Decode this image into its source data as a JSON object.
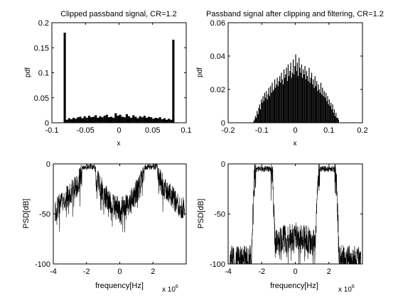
{
  "figure": {
    "background": "#ffffff",
    "axis_color": "#000000",
    "data_color": "#000000"
  },
  "chart_data": [
    {
      "id": "tl",
      "type": "bar",
      "title": "Clipped passband signal, CR=1.2",
      "xlabel": "x",
      "ylabel": "pdf",
      "xlim": [
        -0.1,
        0.1
      ],
      "ylim": [
        0,
        0.2
      ],
      "xticks": [
        -0.1,
        -0.05,
        0,
        0.05,
        0.1
      ],
      "xticklabels": [
        "-0.1",
        "-0.05",
        "0",
        "0.05",
        "0.1"
      ],
      "yticks": [
        0,
        0.05,
        0.1,
        0.15,
        0.2
      ],
      "yticklabels": [
        "0",
        "0.05",
        "0.1",
        "0.15",
        "0.2"
      ],
      "histogram": {
        "bin_start": -0.0825,
        "bin_width": 0.0033,
        "values": [
          0.18,
          0.006,
          0.009,
          0.007,
          0.01,
          0.008,
          0.011,
          0.012,
          0.009,
          0.013,
          0.01,
          0.014,
          0.011,
          0.012,
          0.015,
          0.01,
          0.013,
          0.011,
          0.014,
          0.016,
          0.011,
          0.012,
          0.01,
          0.019,
          0.014,
          0.016,
          0.012,
          0.011,
          0.017,
          0.013,
          0.01,
          0.015,
          0.012,
          0.009,
          0.013,
          0.011,
          0.014,
          0.01,
          0.012,
          0.011,
          0.008,
          0.01,
          0.009,
          0.011,
          0.007,
          0.009,
          0.006,
          0.008,
          0.006,
          0.166
        ]
      }
    },
    {
      "id": "tr",
      "type": "bar",
      "title": "Passband signal after clipping and filtering, CR=1.2",
      "xlabel": "x",
      "ylabel": "pdf",
      "xlim": [
        -0.2,
        0.2
      ],
      "ylim": [
        0,
        0.06
      ],
      "xticks": [
        -0.2,
        -0.1,
        0,
        0.1,
        0.2
      ],
      "xticklabels": [
        "-0.2",
        "-0.1",
        "0",
        "0.1",
        "0.2"
      ],
      "yticks": [
        0,
        0.02,
        0.04,
        0.06
      ],
      "yticklabels": [
        "0",
        "0.02",
        "0.04",
        "0.06"
      ],
      "histogram": {
        "bin_start": -0.125,
        "bin_width": 0.0025,
        "values": [
          0.001,
          0.002,
          0.004,
          0.003,
          0.007,
          0.005,
          0.009,
          0.011,
          0.008,
          0.014,
          0.012,
          0.016,
          0.013,
          0.018,
          0.015,
          0.019,
          0.014,
          0.017,
          0.021,
          0.016,
          0.022,
          0.018,
          0.024,
          0.019,
          0.02,
          0.026,
          0.021,
          0.023,
          0.027,
          0.022,
          0.025,
          0.028,
          0.024,
          0.03,
          0.026,
          0.023,
          0.032,
          0.027,
          0.029,
          0.033,
          0.025,
          0.035,
          0.028,
          0.031,
          0.036,
          0.027,
          0.03,
          0.038,
          0.029,
          0.034,
          0.041,
          0.031,
          0.036,
          0.028,
          0.039,
          0.033,
          0.03,
          0.035,
          0.027,
          0.032,
          0.029,
          0.034,
          0.026,
          0.031,
          0.028,
          0.025,
          0.033,
          0.024,
          0.027,
          0.03,
          0.023,
          0.026,
          0.021,
          0.028,
          0.022,
          0.025,
          0.019,
          0.023,
          0.02,
          0.018,
          0.024,
          0.017,
          0.021,
          0.016,
          0.019,
          0.015,
          0.018,
          0.013,
          0.016,
          0.011,
          0.014,
          0.01,
          0.012,
          0.008,
          0.011,
          0.006,
          0.008,
          0.004,
          0.006,
          0.003,
          0.003,
          0.002
        ]
      }
    },
    {
      "id": "bl",
      "type": "line",
      "title": "",
      "xlabel": "frequency[Hz]",
      "ylabel": "PSD[dB]",
      "x_exponent_label": "x 10",
      "x_exponent": "6",
      "xlim": [
        -4,
        4
      ],
      "ylim": [
        -100,
        0
      ],
      "xticks": [
        -4,
        -2,
        0,
        2
      ],
      "xticklabels": [
        "-4",
        "-2",
        "0",
        "2"
      ],
      "yticks": [
        -100,
        -50,
        0
      ],
      "yticklabels": [
        "-100",
        "-50",
        "0"
      ],
      "psd": {
        "x_unit": "MHz",
        "envelope_x": [
          -3.9,
          -3.5,
          -3.0,
          -2.6,
          -2.3,
          -2.25,
          -1.5,
          -1.45,
          -1.2,
          -0.8,
          -0.4,
          0,
          0.4,
          0.8,
          1.2,
          1.45,
          1.5,
          2.25,
          2.3,
          2.6,
          3.0,
          3.5,
          3.9
        ],
        "envelope_y": [
          -46,
          -40,
          -30,
          -22,
          -12,
          -3,
          -3,
          -12,
          -22,
          -33,
          -42,
          -45,
          -42,
          -33,
          -22,
          -12,
          -3,
          -3,
          -12,
          -22,
          -30,
          -40,
          -46
        ],
        "noise_amplitude_db": 12
      }
    },
    {
      "id": "br",
      "type": "line",
      "title": "",
      "xlabel": "frequency[Hz]",
      "ylabel": "PSD[dB]",
      "x_exponent_label": "x 10",
      "x_exponent": "6",
      "xlim": [
        -4,
        4
      ],
      "ylim": [
        -100,
        0
      ],
      "xticks": [
        -4,
        -2,
        0,
        2
      ],
      "xticklabels": [
        "-4",
        "-2",
        "0",
        "2"
      ],
      "yticks": [
        -100,
        -50,
        0
      ],
      "yticklabels": [
        "-100",
        "-50",
        "0"
      ],
      "psd": {
        "x_unit": "MHz",
        "envelope_x": [
          -3.9,
          -3.2,
          -2.6,
          -2.55,
          -2.45,
          -2.3,
          -1.5,
          -1.35,
          -1.25,
          -1.2,
          -0.7,
          0,
          0.7,
          1.2,
          1.25,
          1.35,
          1.5,
          2.3,
          2.45,
          2.55,
          2.6,
          3.2,
          3.9
        ],
        "envelope_y": [
          -95,
          -95,
          -95,
          -60,
          -15,
          -5,
          -5,
          -15,
          -60,
          -80,
          -75,
          -72,
          -75,
          -80,
          -60,
          -15,
          -5,
          -5,
          -15,
          -60,
          -95,
          -95,
          -95
        ],
        "noise_amplitude_db": 14
      }
    }
  ]
}
